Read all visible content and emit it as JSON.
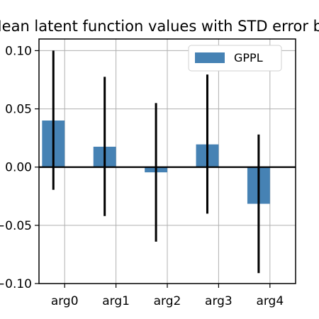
{
  "chart_data": {
    "type": "bar",
    "title": "Mean latent function values with STD error bars",
    "xlabel": "",
    "ylabel": "",
    "categories": [
      "arg0",
      "arg1",
      "arg2",
      "arg3",
      "arg4"
    ],
    "series": [
      {
        "name": "GPPL",
        "values": [
          0.04,
          0.0175,
          -0.0045,
          0.0195,
          -0.0315
        ],
        "error_low": [
          -0.0195,
          -0.042,
          -0.064,
          -0.04,
          -0.091
        ],
        "error_high": [
          0.1,
          0.0775,
          0.055,
          0.0795,
          0.028
        ]
      }
    ],
    "ylim": [
      -0.1,
      0.11
    ],
    "yticks": [
      -0.1,
      -0.05,
      0.0,
      0.05,
      0.1
    ],
    "ytick_labels": [
      "−0.10",
      "−0.05",
      "0.00",
      "0.05",
      "0.10"
    ],
    "grid": true,
    "zero_line": true,
    "legend_position": "top-right",
    "colors": {
      "bar": "#4682b4",
      "error_bar": "#000000",
      "grid": "#b0b0b0",
      "zero_line": "#000000"
    }
  }
}
